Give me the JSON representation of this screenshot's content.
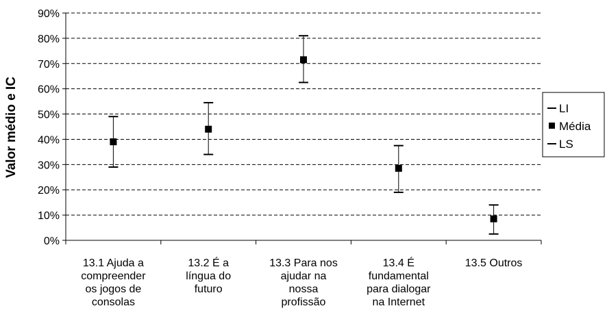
{
  "chart_data": {
    "type": "scatter",
    "title": "",
    "xlabel": "",
    "ylabel": "Valor médio e IC",
    "ylim": [
      0,
      0.9
    ],
    "yticks": [
      "0%",
      "10%",
      "20%",
      "30%",
      "40%",
      "50%",
      "60%",
      "70%",
      "80%",
      "90%"
    ],
    "grid": "horizontal-dashed",
    "legend_position": "right",
    "legend": [
      "LI",
      "Média",
      "LS"
    ],
    "categories": [
      [
        "13.1 Ajuda a",
        "compreender",
        "os jogos de",
        "consolas"
      ],
      [
        "13.2 É a",
        "língua do",
        "futuro"
      ],
      [
        "13.3 Para nos",
        "ajudar na",
        "nossa",
        "profissão"
      ],
      [
        "13.4 É",
        "fundamental",
        "para dialogar",
        "na Internet"
      ],
      [
        "13.5 Outros"
      ]
    ],
    "series": [
      {
        "name": "LI",
        "values": [
          0.29,
          0.34,
          0.625,
          0.19,
          0.025
        ]
      },
      {
        "name": "Média",
        "values": [
          0.39,
          0.44,
          0.715,
          0.285,
          0.085
        ]
      },
      {
        "name": "LS",
        "values": [
          0.49,
          0.545,
          0.81,
          0.375,
          0.14
        ]
      }
    ]
  }
}
